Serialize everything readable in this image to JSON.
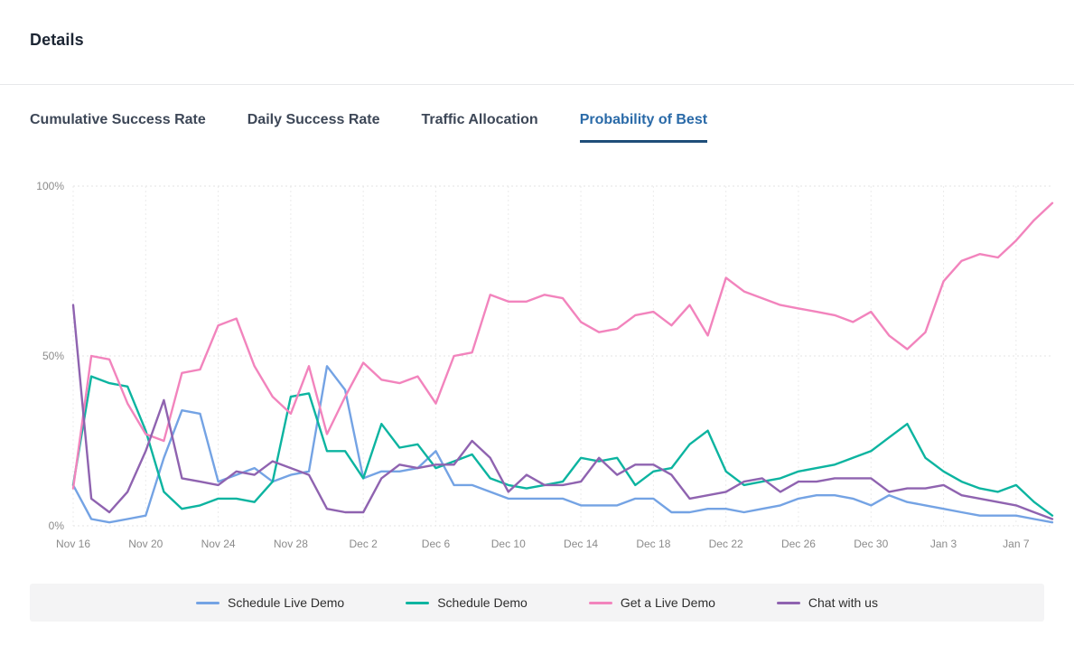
{
  "page": {
    "title": "Details"
  },
  "tabs": [
    {
      "label": "Cumulative Success Rate",
      "active": false
    },
    {
      "label": "Daily Success Rate",
      "active": false
    },
    {
      "label": "Traffic Allocation",
      "active": false
    },
    {
      "label": "Probability of Best",
      "active": true
    }
  ],
  "chart_data": {
    "type": "line",
    "title": "Probability of Best",
    "xlabel": "",
    "ylabel": "",
    "ylim": [
      0,
      100
    ],
    "grid": "dotted",
    "legend_position": "bottom",
    "y_ticks": [
      0,
      50,
      100
    ],
    "y_tick_labels": [
      "0%",
      "50%",
      "100%"
    ],
    "x": [
      "Nov 16",
      "Nov 17",
      "Nov 18",
      "Nov 19",
      "Nov 20",
      "Nov 21",
      "Nov 22",
      "Nov 23",
      "Nov 24",
      "Nov 25",
      "Nov 26",
      "Nov 27",
      "Nov 28",
      "Nov 29",
      "Nov 30",
      "Dec 1",
      "Dec 2",
      "Dec 3",
      "Dec 4",
      "Dec 5",
      "Dec 6",
      "Dec 7",
      "Dec 8",
      "Dec 9",
      "Dec 10",
      "Dec 11",
      "Dec 12",
      "Dec 13",
      "Dec 14",
      "Dec 15",
      "Dec 16",
      "Dec 17",
      "Dec 18",
      "Dec 19",
      "Dec 20",
      "Dec 21",
      "Dec 22",
      "Dec 23",
      "Dec 24",
      "Dec 25",
      "Dec 26",
      "Dec 27",
      "Dec 28",
      "Dec 29",
      "Dec 30",
      "Dec 31",
      "Jan 1",
      "Jan 2",
      "Jan 3",
      "Jan 4",
      "Jan 5",
      "Jan 6",
      "Jan 7",
      "Jan 8",
      "Jan 9"
    ],
    "x_tick_indices": [
      0,
      4,
      8,
      12,
      16,
      20,
      24,
      28,
      32,
      36,
      40,
      44,
      48,
      52
    ],
    "x_tick_labels": [
      "Nov 16",
      "Nov 20",
      "Nov 24",
      "Nov 28",
      "Dec 2",
      "Dec 6",
      "Dec 10",
      "Dec 14",
      "Dec 18",
      "Dec 22",
      "Dec 26",
      "Dec 30",
      "Jan 3",
      "Jan 7"
    ],
    "series": [
      {
        "name": "Schedule Live Demo",
        "color": "#74a3e4",
        "values": [
          12,
          2,
          1,
          2,
          3,
          20,
          34,
          33,
          13,
          15,
          17,
          13,
          15,
          16,
          47,
          40,
          14,
          16,
          16,
          17,
          22,
          12,
          12,
          10,
          8,
          8,
          8,
          8,
          6,
          6,
          6,
          8,
          8,
          4,
          4,
          5,
          5,
          4,
          5,
          6,
          8,
          9,
          9,
          8,
          6,
          9,
          7,
          6,
          5,
          4,
          3,
          3,
          3,
          2,
          1
        ]
      },
      {
        "name": "Schedule Demo",
        "color": "#0cb4a0",
        "values": [
          12,
          44,
          42,
          41,
          28,
          10,
          5,
          6,
          8,
          8,
          7,
          13,
          38,
          39,
          22,
          22,
          14,
          30,
          23,
          24,
          17,
          19,
          21,
          14,
          12,
          11,
          12,
          13,
          20,
          19,
          20,
          12,
          16,
          17,
          24,
          28,
          16,
          12,
          13,
          14,
          16,
          17,
          18,
          20,
          22,
          26,
          30,
          20,
          16,
          13,
          11,
          10,
          12,
          7,
          3
        ]
      },
      {
        "name": "Get a Live Demo",
        "color": "#f284bd",
        "values": [
          11,
          50,
          49,
          36,
          27,
          25,
          45,
          46,
          59,
          61,
          47,
          38,
          33,
          47,
          27,
          38,
          48,
          43,
          42,
          44,
          36,
          50,
          51,
          68,
          66,
          66,
          68,
          67,
          60,
          57,
          58,
          62,
          63,
          59,
          65,
          56,
          73,
          69,
          67,
          65,
          64,
          63,
          62,
          60,
          63,
          56,
          52,
          57,
          72,
          78,
          80,
          79,
          84,
          90,
          95
        ]
      },
      {
        "name": "Chat with us",
        "color": "#8f63b0",
        "values": [
          65,
          8,
          4,
          10,
          22,
          37,
          14,
          13,
          12,
          16,
          15,
          19,
          17,
          15,
          5,
          4,
          4,
          14,
          18,
          17,
          18,
          18,
          25,
          20,
          10,
          15,
          12,
          12,
          13,
          20,
          15,
          18,
          18,
          15,
          8,
          9,
          10,
          13,
          14,
          10,
          13,
          13,
          14,
          14,
          14,
          10,
          11,
          11,
          12,
          9,
          8,
          7,
          6,
          4,
          2
        ]
      }
    ]
  }
}
